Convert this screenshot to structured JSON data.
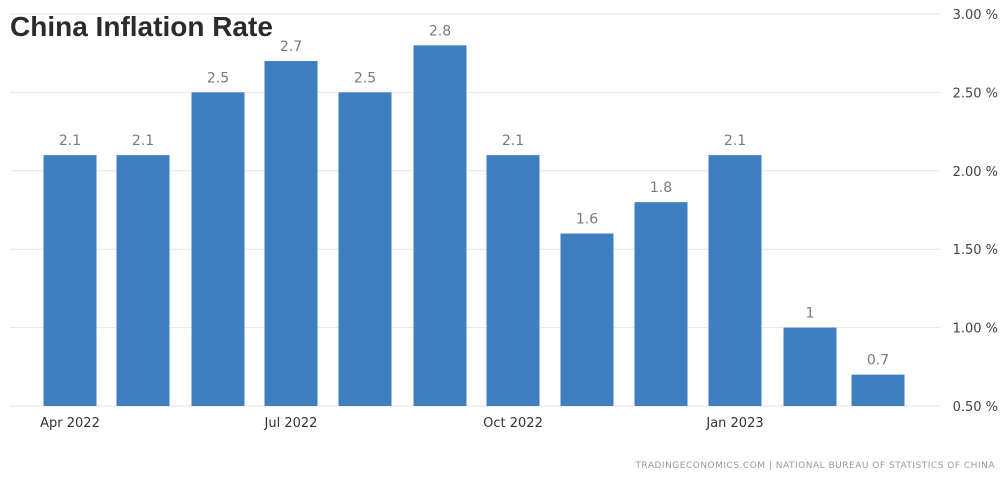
{
  "chart_data": {
    "type": "bar",
    "title": "China Inflation Rate",
    "categories": [
      "Apr 2022",
      "May 2022",
      "Jun 2022",
      "Jul 2022",
      "Aug 2022",
      "Sep 2022",
      "Oct 2022",
      "Nov 2022",
      "Dec 2022",
      "Jan 2023",
      "Feb 2023",
      "Mar 2023"
    ],
    "x_tick_labels": [
      "Apr 2022",
      "",
      "",
      "Jul 2022",
      "",
      "",
      "Oct 2022",
      "",
      "",
      "Jan 2023",
      "",
      ""
    ],
    "values": [
      2.1,
      2.1,
      2.5,
      2.7,
      2.5,
      2.8,
      2.1,
      1.6,
      1.8,
      2.1,
      1.0,
      0.7
    ],
    "data_labels": [
      "2.1",
      "2.1",
      "2.5",
      "2.7",
      "2.5",
      "2.8",
      "2.1",
      "1.6",
      "1.8",
      "2.1",
      "1",
      "0.7"
    ],
    "ylim": [
      0.5,
      3.0
    ],
    "y_ticks": [
      0.5,
      1.0,
      1.5,
      2.0,
      2.5,
      3.0
    ],
    "y_tick_labels": [
      "0.50 %",
      "1.00 %",
      "1.50 %",
      "2.00 %",
      "2.50 %",
      "3.00 %"
    ],
    "y_axis_position": "right",
    "grid": true,
    "bar_color": "#3f7fbf",
    "grid_color": "#e6e6e6",
    "source": "TRADINGECONOMICS.COM  |  NATIONAL BUREAU OF STATISTICS OF CHINA"
  }
}
